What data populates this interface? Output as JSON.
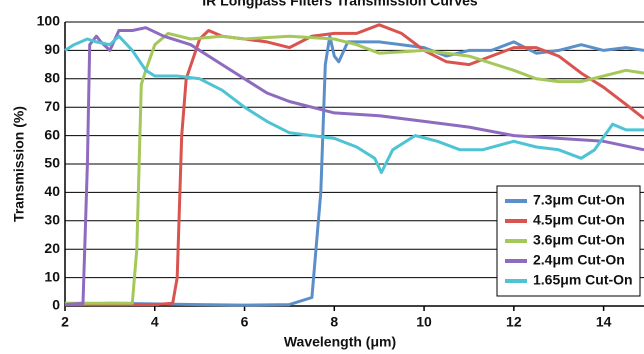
{
  "chart_data": {
    "type": "line",
    "title": "IR Longpass Filters Transmission Curves",
    "x_label": "Wavelength (μm)",
    "y_label": "Transmission (%)",
    "xlim": [
      2,
      14.9
    ],
    "ylim": [
      0,
      100
    ],
    "xticks": [
      2,
      4,
      6,
      8,
      10,
      12,
      14
    ],
    "yticks": [
      0,
      10,
      20,
      30,
      40,
      50,
      60,
      70,
      80,
      90,
      100
    ],
    "grid": true,
    "legend": "lower right",
    "series": [
      {
        "name": "7.3μm Cut-On",
        "color": "#5b8fc9",
        "x": [
          2,
          3,
          5,
          6,
          7,
          7.5,
          7.7,
          7.8,
          7.9,
          8.0,
          8.1,
          8.3,
          9,
          10,
          10.5,
          11,
          11.5,
          12,
          12.5,
          13,
          13.5,
          14,
          14.5,
          14.9
        ],
        "values": [
          0.5,
          1,
          0.5,
          0.3,
          0.5,
          3,
          40,
          85,
          95,
          88,
          86,
          93,
          93,
          91,
          88,
          90,
          90,
          93,
          89,
          90,
          92,
          90,
          91,
          90
        ]
      },
      {
        "name": "4.5μm Cut-On",
        "color": "#d9534f",
        "x": [
          2,
          4,
          4.4,
          4.5,
          4.6,
          4.7,
          5.0,
          5.2,
          5.5,
          6,
          6.5,
          7,
          7.5,
          8,
          8.5,
          9,
          9.5,
          10,
          10.5,
          11,
          11.5,
          12,
          12.5,
          13,
          13.5,
          14,
          14.5,
          14.9
        ],
        "values": [
          0.5,
          0.5,
          1,
          10,
          60,
          80,
          94,
          97,
          95,
          94,
          93,
          91,
          95,
          96,
          96,
          99,
          96,
          90,
          86,
          85,
          88,
          91,
          91,
          88,
          82,
          77,
          71,
          66
        ]
      },
      {
        "name": "3.6μm Cut-On",
        "color": "#a5c85a",
        "x": [
          2,
          3,
          3.5,
          3.6,
          3.7,
          3.8,
          4,
          4.3,
          4.8,
          5.5,
          6,
          7,
          8,
          8.5,
          9,
          10,
          11,
          12,
          12.5,
          13,
          13.5,
          14,
          14.5,
          14.9
        ],
        "values": [
          1,
          1,
          1,
          20,
          78,
          83,
          92,
          96,
          94,
          95,
          94,
          95,
          94,
          92,
          89,
          90,
          88,
          83,
          80,
          79,
          79,
          81,
          83,
          82
        ]
      },
      {
        "name": "2.4μm Cut-On",
        "color": "#8e6bbf",
        "x": [
          2,
          2.4,
          2.5,
          2.55,
          2.7,
          2.8,
          3,
          3.2,
          3.5,
          3.8,
          4.2,
          4.8,
          5.5,
          6,
          6.5,
          7,
          7.5,
          8,
          9,
          10,
          11,
          12,
          13,
          14,
          14.9
        ],
        "values": [
          0.5,
          1,
          50,
          92,
          95,
          93,
          90,
          97,
          97,
          98,
          95,
          92,
          85,
          80,
          75,
          72,
          70,
          68,
          67,
          65,
          63,
          60,
          59,
          58,
          55
        ]
      },
      {
        "name": "1.65μm Cut-On",
        "color": "#4ec3d4",
        "x": [
          2,
          2.2,
          2.5,
          2.7,
          3,
          3.2,
          3.5,
          3.8,
          4,
          4.5,
          5,
          5.5,
          6,
          6.5,
          7,
          7.5,
          8,
          8.5,
          8.9,
          9.05,
          9.3,
          9.8,
          10.3,
          10.8,
          11.3,
          12,
          12.5,
          13,
          13.5,
          13.8,
          14.2,
          14.5,
          14.9
        ],
        "values": [
          90,
          92,
          94,
          93,
          92,
          95,
          90,
          83,
          81,
          81,
          80,
          76,
          70,
          65,
          61,
          60,
          59,
          56,
          52,
          47,
          55,
          60,
          58,
          55,
          55,
          58,
          56,
          55,
          52,
          55,
          64,
          62,
          62
        ]
      }
    ]
  }
}
